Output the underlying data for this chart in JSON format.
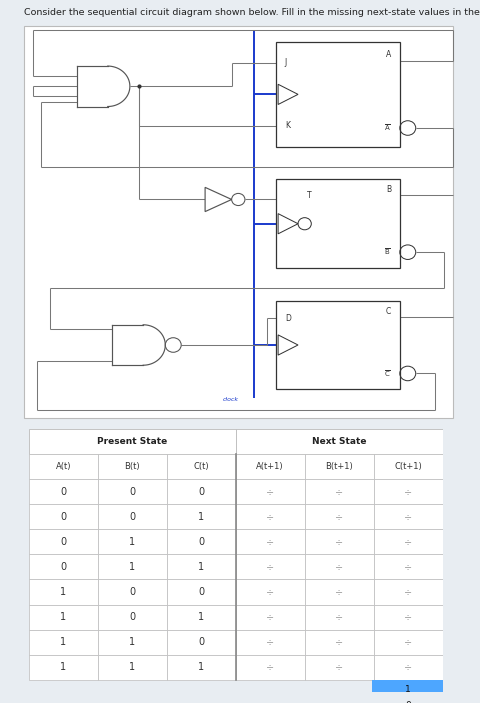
{
  "bg_color": "#e8edf2",
  "page_bg": "#ffffff",
  "title_text": "Consider the sequential circuit diagram shown below. Fill in the missing next-state values in the state table.",
  "title_fontsize": 6.8,
  "title_color": "#222222",
  "clock_color": "#1a3acc",
  "wire_color": "#777777",
  "gate_color": "#555555",
  "ff_color": "#333333",
  "present_state_rows": [
    [
      0,
      0,
      0
    ],
    [
      0,
      0,
      1
    ],
    [
      0,
      1,
      0
    ],
    [
      0,
      1,
      1
    ],
    [
      1,
      0,
      0
    ],
    [
      1,
      0,
      1
    ],
    [
      1,
      1,
      0
    ],
    [
      1,
      1,
      1
    ]
  ],
  "col_headers_present": [
    "A(t)",
    "B(t)",
    "C(t)"
  ],
  "col_headers_next": [
    "A(t+1)",
    "B(t+1)",
    "C(t+1)"
  ],
  "group_header_present": "Present State",
  "group_header_next": "Next State",
  "spinner_char": "÷",
  "spinner_color": "#999999",
  "dropdown_bg": "#4da6ff",
  "table_bg": "#ffffff",
  "table_border": "#bbbbbb",
  "divider_color": "#999999"
}
